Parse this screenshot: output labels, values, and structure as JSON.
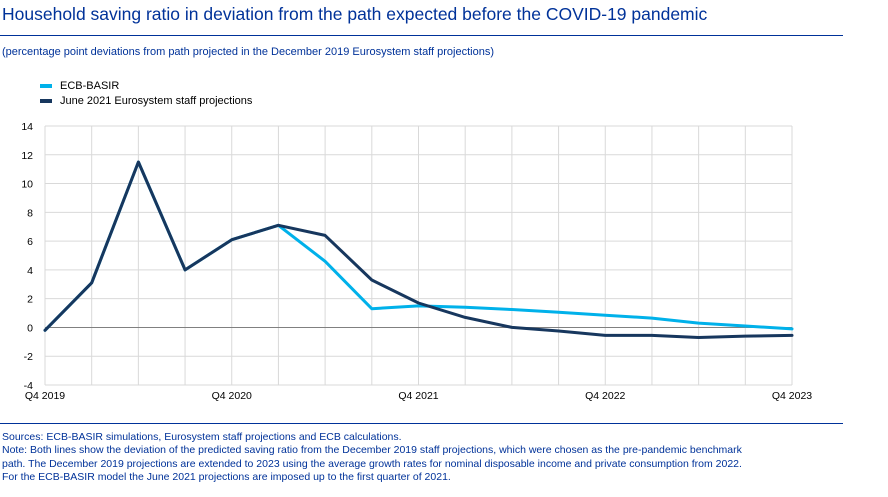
{
  "title": "Household saving ratio in deviation from the path expected before the COVID-19 pandemic",
  "subtitle": "(percentage point deviations from path projected in the December 2019 Eurosystem staff projections)",
  "colors": {
    "accent": "#003299",
    "basir": "#00B1EA",
    "june": "#17375E",
    "grid": "#d9d9d9"
  },
  "chart_data": {
    "type": "line",
    "x": [
      "Q4 2019",
      "Q1 2020",
      "Q2 2020",
      "Q3 2020",
      "Q4 2020",
      "Q1 2021",
      "Q2 2021",
      "Q3 2021",
      "Q4 2021",
      "Q1 2022",
      "Q2 2022",
      "Q3 2022",
      "Q4 2022",
      "Q1 2023",
      "Q2 2023",
      "Q3 2023",
      "Q4 2023"
    ],
    "x_tick_labels": [
      "Q4 2019",
      "Q4 2020",
      "Q4 2021",
      "Q4 2022",
      "Q4 2023"
    ],
    "y_tick_labels": [
      "14",
      "12",
      "10",
      "8",
      "6",
      "4",
      "2",
      "0",
      "-2",
      "-4"
    ],
    "ylim": [
      -4,
      14
    ],
    "series": [
      {
        "name": "ECB-BASIR",
        "values": [
          -0.2,
          3.1,
          11.5,
          4.0,
          6.1,
          7.1,
          4.6,
          1.3,
          1.5,
          1.4,
          1.25,
          1.05,
          0.85,
          0.65,
          0.3,
          0.1,
          -0.1
        ]
      },
      {
        "name": "June 2021 Eurosystem staff projections",
        "values": [
          -0.2,
          3.1,
          11.5,
          4.0,
          6.1,
          7.1,
          6.4,
          3.3,
          1.7,
          0.7,
          0.0,
          -0.25,
          -0.55,
          -0.55,
          -0.7,
          -0.6,
          -0.55
        ]
      }
    ]
  },
  "notes": [
    "Sources: ECB-BASIR simulations, Eurosystem staff projections and ECB calculations.",
    "Note: Both lines show the deviation of the predicted saving ratio from the December 2019 staff projections, which were chosen as the pre-pandemic benchmark",
    "path. The December 2019 projections are extended to 2023 using the average growth rates for nominal disposable income and private consumption from 2022.",
    "For the ECB-BASIR model the June 2021 projections are imposed up to the first quarter of 2021."
  ]
}
